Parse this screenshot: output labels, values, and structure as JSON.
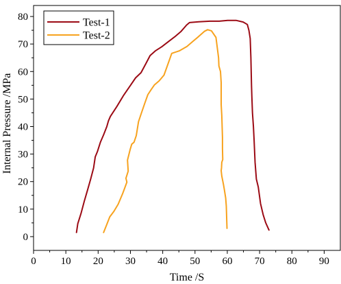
{
  "chart_data": {
    "type": "line",
    "xlabel": "Time /S",
    "ylabel": "Internal Pressure /MPa",
    "xlim": [
      0,
      95
    ],
    "ylim": [
      -5,
      84
    ],
    "xticks": [
      0,
      10,
      20,
      30,
      40,
      50,
      60,
      70,
      80,
      90
    ],
    "yticks": [
      0,
      10,
      20,
      30,
      40,
      50,
      60,
      70,
      80
    ],
    "legend_position": "top-left",
    "grid": false,
    "series": [
      {
        "name": "Test-1",
        "color": "#9b0a14",
        "x": [
          13.3,
          13.7,
          14.7,
          15.7,
          16.7,
          17.7,
          18.6,
          19.1,
          19.8,
          20.7,
          21.7,
          22.7,
          23.2,
          23.8,
          25.8,
          27.8,
          29.8,
          31.6,
          33.3,
          34.8,
          36.1,
          37.7,
          39.7,
          41.7,
          43.7,
          45.7,
          47.4,
          48.3,
          51.2,
          54.6,
          57.5,
          60.1,
          62.7,
          64.9,
          66.2,
          66.7,
          67.1,
          67.3,
          67.5,
          67.6,
          67.8,
          68.1,
          68.3,
          68.6,
          69.0,
          69.6,
          70.3,
          71.1,
          71.9,
          72.9
        ],
        "y": [
          1.5,
          4.7,
          8.4,
          12.8,
          16.9,
          21.0,
          25.0,
          29.0,
          31.0,
          34.3,
          37.0,
          40.0,
          42.1,
          43.7,
          47.3,
          51.2,
          54.6,
          57.7,
          59.6,
          62.9,
          65.8,
          67.5,
          69.0,
          70.8,
          72.6,
          74.6,
          76.9,
          77.8,
          78.1,
          78.3,
          78.3,
          78.6,
          78.6,
          78.0,
          77.1,
          75.0,
          72.0,
          65.0,
          55.0,
          51.0,
          45.0,
          40.0,
          35.0,
          27.0,
          20.9,
          18.0,
          12.0,
          8.0,
          5.0,
          2.4
        ]
      },
      {
        "name": "Test-2",
        "color": "#f7a21e",
        "x": [
          21.7,
          22.6,
          23.6,
          24.9,
          26.2,
          27.6,
          28.3,
          28.9,
          28.6,
          29.3,
          29.1,
          29.9,
          30.4,
          31.1,
          31.8,
          32.5,
          33.4,
          34.4,
          35.4,
          36.4,
          37.4,
          38.9,
          40.4,
          41.5,
          42.8,
          45.1,
          47.5,
          49.2,
          51.1,
          52.9,
          53.9,
          55.1,
          56.5,
          57.3,
          57.4,
          57.9,
          58.1,
          58.1,
          58.3,
          58.4,
          58.5,
          58.5,
          58.6,
          58.3,
          58.2,
          58.1,
          58.3,
          58.8,
          59.1,
          59.5,
          59.7,
          59.9
        ],
        "y": [
          1.5,
          4.2,
          7.2,
          9.2,
          11.8,
          15.7,
          17.9,
          19.8,
          21.2,
          23.8,
          27.8,
          31.6,
          33.6,
          34.3,
          36.7,
          41.8,
          44.9,
          48.3,
          51.6,
          53.4,
          55.1,
          56.6,
          58.7,
          62.3,
          66.6,
          67.5,
          69.1,
          70.8,
          72.7,
          74.6,
          75.2,
          74.8,
          72.4,
          65.0,
          62.0,
          60.0,
          56.0,
          48.0,
          44.0,
          40.0,
          36.0,
          32.0,
          28.0,
          27.0,
          25.0,
          24.0,
          22.0,
          19.0,
          17.0,
          14.0,
          11.0,
          3.0
        ]
      }
    ]
  }
}
